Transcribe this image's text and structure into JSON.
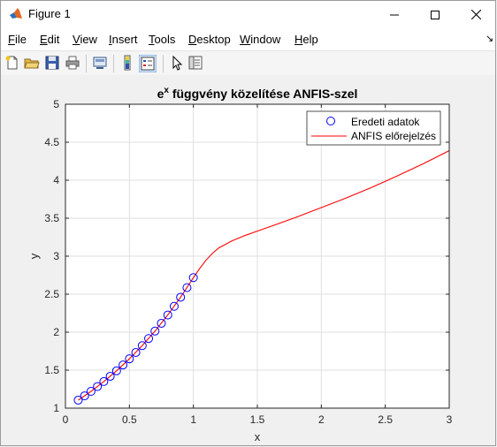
{
  "window": {
    "title": "Figure 1",
    "controls": [
      "minimize",
      "maximize",
      "close"
    ]
  },
  "menu": {
    "items": [
      "File",
      "Edit",
      "View",
      "Insert",
      "Tools",
      "Desktop",
      "Window",
      "Help"
    ]
  },
  "toolbar": {
    "buttons": [
      "new-figure-icon",
      "open-file-icon",
      "save-icon",
      "print-icon",
      "link-figure-icon",
      "colorbar-icon",
      "legend-icon",
      "pointer-icon",
      "property-inspector-icon"
    ]
  },
  "chart_data": {
    "type": "line",
    "title_base": "e",
    "title_sup": "x",
    "title_rest": " függvény közelítése ANFIS-szel",
    "xlabel": "x",
    "ylabel": "y",
    "xlim": [
      0,
      3
    ],
    "ylim": [
      1,
      5
    ],
    "xticks": [
      0,
      0.5,
      1,
      1.5,
      2,
      2.5,
      3
    ],
    "xtick_labels": [
      "0",
      "0.5",
      "1",
      "1.5",
      "2",
      "2.5",
      "3"
    ],
    "yticks": [
      1,
      1.5,
      2,
      2.5,
      3,
      3.5,
      4,
      4.5,
      5
    ],
    "ytick_labels": [
      "1",
      "1.5",
      "2",
      "2.5",
      "3",
      "3.5",
      "4",
      "4.5",
      "5"
    ],
    "grid": true,
    "legend_position": "top-right",
    "series": [
      {
        "name": "Eredeti adatok",
        "kind": "scatter",
        "marker": "circle",
        "color": "#0000ff",
        "x": [
          0.1,
          0.15,
          0.2,
          0.25,
          0.3,
          0.35,
          0.4,
          0.45,
          0.5,
          0.55,
          0.6,
          0.65,
          0.7,
          0.75,
          0.8,
          0.85,
          0.9,
          0.95,
          1.0
        ],
        "y": [
          1.105,
          1.162,
          1.221,
          1.284,
          1.35,
          1.419,
          1.492,
          1.568,
          1.649,
          1.733,
          1.822,
          1.916,
          2.014,
          2.117,
          2.226,
          2.34,
          2.46,
          2.586,
          2.718
        ]
      },
      {
        "name": "ANFIS előrejelzés",
        "kind": "line",
        "color": "#ff0000",
        "x": [
          0.1,
          0.2,
          0.3,
          0.4,
          0.5,
          0.6,
          0.7,
          0.8,
          0.9,
          1.0,
          1.05,
          1.1,
          1.15,
          1.2,
          1.3,
          1.4,
          1.5,
          1.6,
          1.8,
          2.0,
          2.2,
          2.4,
          2.6,
          2.8,
          3.0
        ],
        "y": [
          1.105,
          1.221,
          1.35,
          1.492,
          1.649,
          1.822,
          2.014,
          2.226,
          2.46,
          2.718,
          2.84,
          2.95,
          3.04,
          3.11,
          3.2,
          3.27,
          3.33,
          3.39,
          3.51,
          3.64,
          3.77,
          3.91,
          4.06,
          4.22,
          4.39
        ]
      }
    ]
  }
}
